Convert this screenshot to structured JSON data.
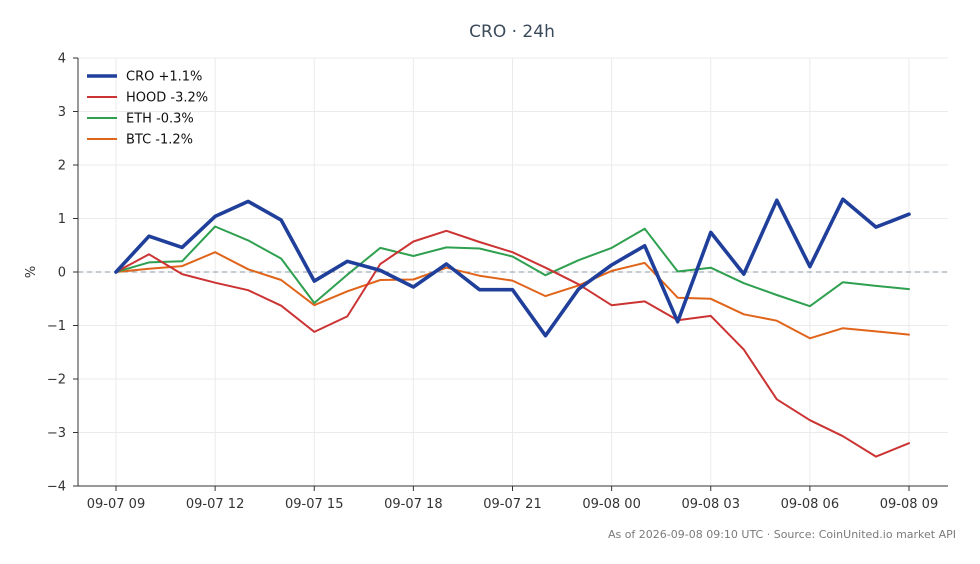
{
  "chart_data": {
    "type": "line",
    "title": "CRO · 24h",
    "xlabel": "",
    "ylabel": "%",
    "ylim": [
      -4,
      4
    ],
    "yticks": [
      4,
      3,
      2,
      1,
      0,
      -1,
      -2,
      -3,
      -4
    ],
    "ytick_labels": [
      "4",
      "3",
      "2",
      "1",
      "0",
      "−1",
      "−2",
      "−3",
      "−4"
    ],
    "xticks": [
      {
        "index": 0,
        "label": "09-07 09"
      },
      {
        "index": 3,
        "label": "09-07 12"
      },
      {
        "index": 6,
        "label": "09-07 15"
      },
      {
        "index": 9,
        "label": "09-07 18"
      },
      {
        "index": 12,
        "label": "09-07 21"
      },
      {
        "index": 15,
        "label": "09-08 00"
      },
      {
        "index": 18,
        "label": "09-08 03"
      },
      {
        "index": 21,
        "label": "09-08 06"
      },
      {
        "index": 24,
        "label": "09-08 09"
      }
    ],
    "x": [
      "09-07 09",
      "09-07 10",
      "09-07 11",
      "09-07 12",
      "09-07 13",
      "09-07 14",
      "09-07 15",
      "09-07 16",
      "09-07 17",
      "09-07 18",
      "09-07 19",
      "09-07 20",
      "09-07 21",
      "09-07 22",
      "09-07 23",
      "09-08 00",
      "09-08 01",
      "09-08 02",
      "09-08 03",
      "09-08 04",
      "09-08 05",
      "09-08 06",
      "09-08 07",
      "09-08 08",
      "09-08 09"
    ],
    "grid": true,
    "legend_position": "top-left",
    "zero_line": true,
    "series": [
      {
        "name": "CRO +1.1%",
        "color": "#1f3f9a",
        "width": "thick",
        "values": [
          0,
          0.67,
          0.46,
          1.04,
          1.32,
          0.97,
          -0.17,
          0.2,
          0.03,
          -0.28,
          0.15,
          -0.33,
          -0.33,
          -1.19,
          -0.32,
          0.13,
          0.49,
          -0.93,
          0.74,
          -0.04,
          1.34,
          0.1,
          1.36,
          0.84,
          1.08
        ]
      },
      {
        "name": "HOOD -3.2%",
        "color": "#cc3333",
        "width": "normal",
        "values": [
          0,
          0.33,
          -0.04,
          -0.2,
          -0.34,
          -0.63,
          -1.12,
          -0.83,
          0.15,
          0.57,
          0.77,
          0.56,
          0.37,
          0.08,
          -0.23,
          -0.62,
          -0.55,
          -0.9,
          -0.82,
          -1.45,
          -2.38,
          -2.77,
          -3.07,
          -3.45,
          -3.2
        ]
      },
      {
        "name": "ETH -0.3%",
        "color": "#2ea04f",
        "width": "normal",
        "values": [
          0,
          0.18,
          0.2,
          0.85,
          0.59,
          0.25,
          -0.58,
          -0.05,
          0.45,
          0.3,
          0.46,
          0.44,
          0.29,
          -0.06,
          0.22,
          0.45,
          0.81,
          0.01,
          0.08,
          -0.21,
          -0.43,
          -0.64,
          -0.19,
          -0.26,
          -0.32
        ]
      },
      {
        "name": "BTC -1.2%",
        "color": "#e0641a",
        "width": "normal",
        "values": [
          0,
          0.06,
          0.11,
          0.37,
          0.05,
          -0.15,
          -0.62,
          -0.36,
          -0.15,
          -0.14,
          0.08,
          -0.07,
          -0.16,
          -0.45,
          -0.25,
          0.02,
          0.17,
          -0.48,
          -0.5,
          -0.79,
          -0.91,
          -1.24,
          -1.05,
          -1.11,
          -1.17
        ]
      }
    ],
    "footer": "As of 2026-09-08 09:10 UTC · Source: CoinUnited.io market API"
  }
}
